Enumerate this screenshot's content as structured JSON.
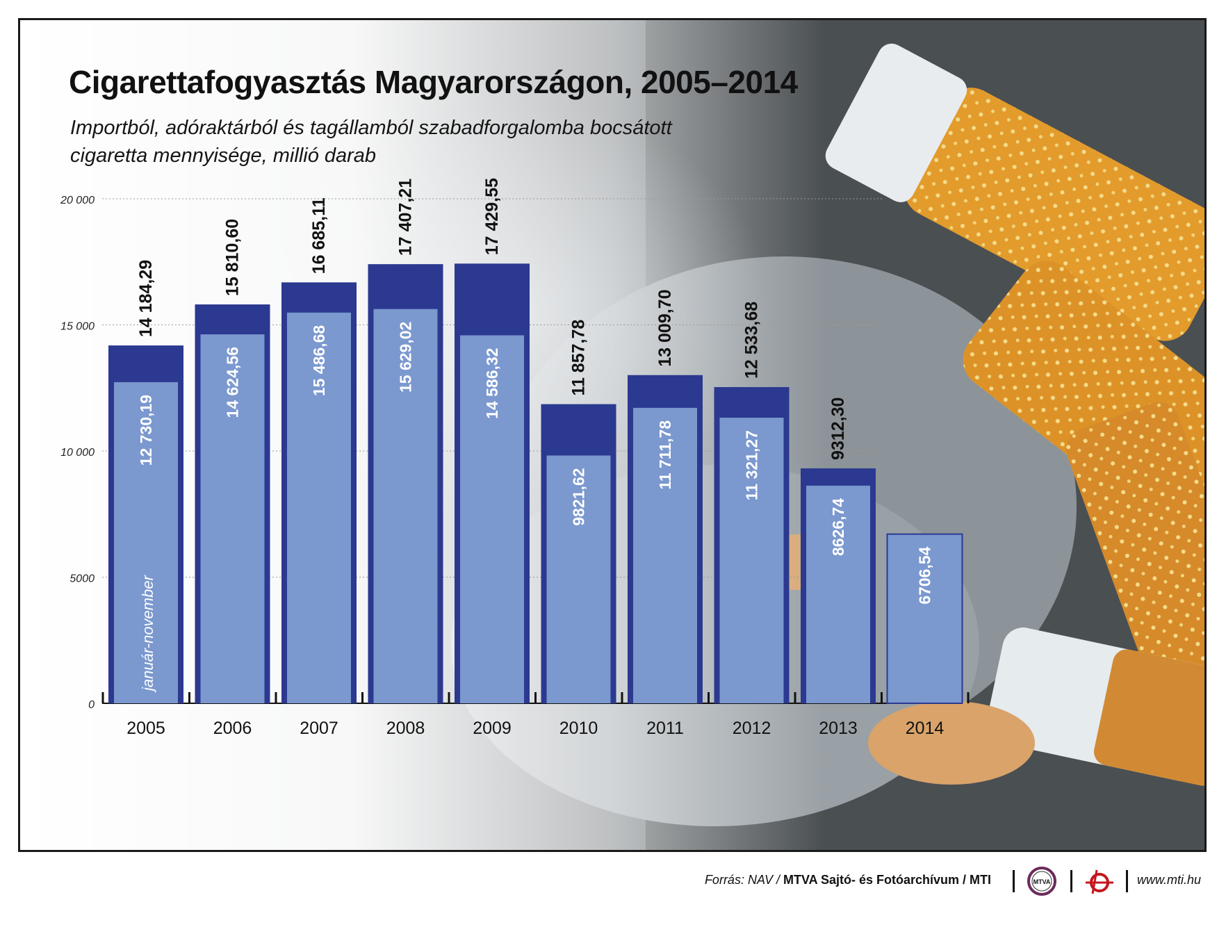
{
  "title": "Cigarettafogyasztás Magyarországon, 2005–2014",
  "subtitle_line1": "Importból, adóraktárból és tagállamból szabadforgalomba bocsátott",
  "subtitle_line2": "cigaretta mennyisége, millió darab",
  "note": "január-november",
  "footer": {
    "source_prefix": "Forrás: NAV / ",
    "source_bold": "MTVA Sajtó- és Fotóarchívum",
    "source_suffix": " / MTI",
    "logo_text": "MTVA",
    "website": "www.mti.hu"
  },
  "colors": {
    "dark_bar": "#2b3990",
    "light_bar": "#7b98cf",
    "frame": "#1a1a1a"
  },
  "chart_data": {
    "type": "bar",
    "title": "Cigarettafogyasztás Magyarországon, 2005–2014",
    "categories": [
      "2005",
      "2006",
      "2007",
      "2008",
      "2009",
      "2010",
      "2011",
      "2012",
      "2013",
      "2014"
    ],
    "series": [
      {
        "values": [
          14184.29,
          15810.6,
          16685.11,
          17407.21,
          17429.55,
          11857.78,
          13009.7,
          12533.68,
          9312.3,
          null
        ],
        "labels": [
          "14 184,29",
          "15 810,60",
          "16 685,11",
          "17 407,21",
          "17 429,55",
          "11 857,78",
          "13 009,70",
          "12 533,68",
          "9312,30",
          ""
        ]
      },
      {
        "values": [
          12730.19,
          14624.56,
          15486.68,
          15629.02,
          14586.32,
          9821.62,
          11711.78,
          11321.27,
          8626.74,
          6706.54
        ],
        "labels": [
          "12 730,19",
          "14 624,56",
          "15 486,68",
          "15 629,02",
          "14 586,32",
          "9821,62",
          "11 711,78",
          "11 321,27",
          "8626,74",
          "6706,54"
        ]
      }
    ],
    "yticks": [
      0,
      5000,
      10000,
      15000,
      20000
    ],
    "ytick_labels": [
      "0",
      "5000",
      "10 000",
      "15 000",
      "20 000"
    ],
    "ylim": [
      0,
      20000
    ],
    "grid": true
  }
}
